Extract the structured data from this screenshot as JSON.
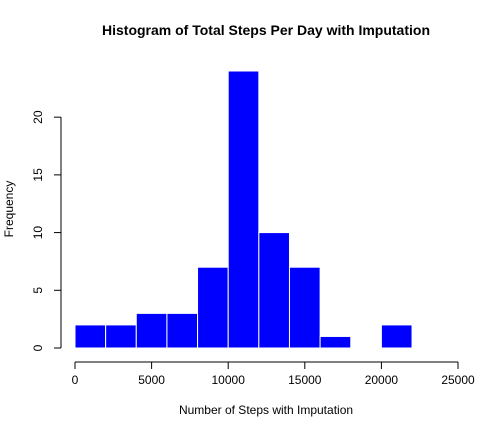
{
  "chart_data": {
    "type": "bar",
    "title": "Histogram of Total Steps Per Day with Imputation",
    "xlabel": "Number of Steps with Imputation",
    "ylabel": "Frequency",
    "bin_edges": [
      0,
      2000,
      4000,
      6000,
      8000,
      10000,
      12000,
      14000,
      16000,
      18000,
      20000,
      22000
    ],
    "values": [
      2,
      2,
      3,
      3,
      7,
      24,
      10,
      7,
      1,
      0,
      2
    ],
    "xlim": [
      0,
      25000
    ],
    "ylim": [
      0,
      24
    ],
    "x_ticks": [
      0,
      5000,
      10000,
      15000,
      20000,
      25000
    ],
    "y_ticks": [
      0,
      5,
      10,
      15,
      20
    ],
    "grid": false,
    "bar_color": "#0000ff",
    "bar_border_color": "#ffffff"
  }
}
